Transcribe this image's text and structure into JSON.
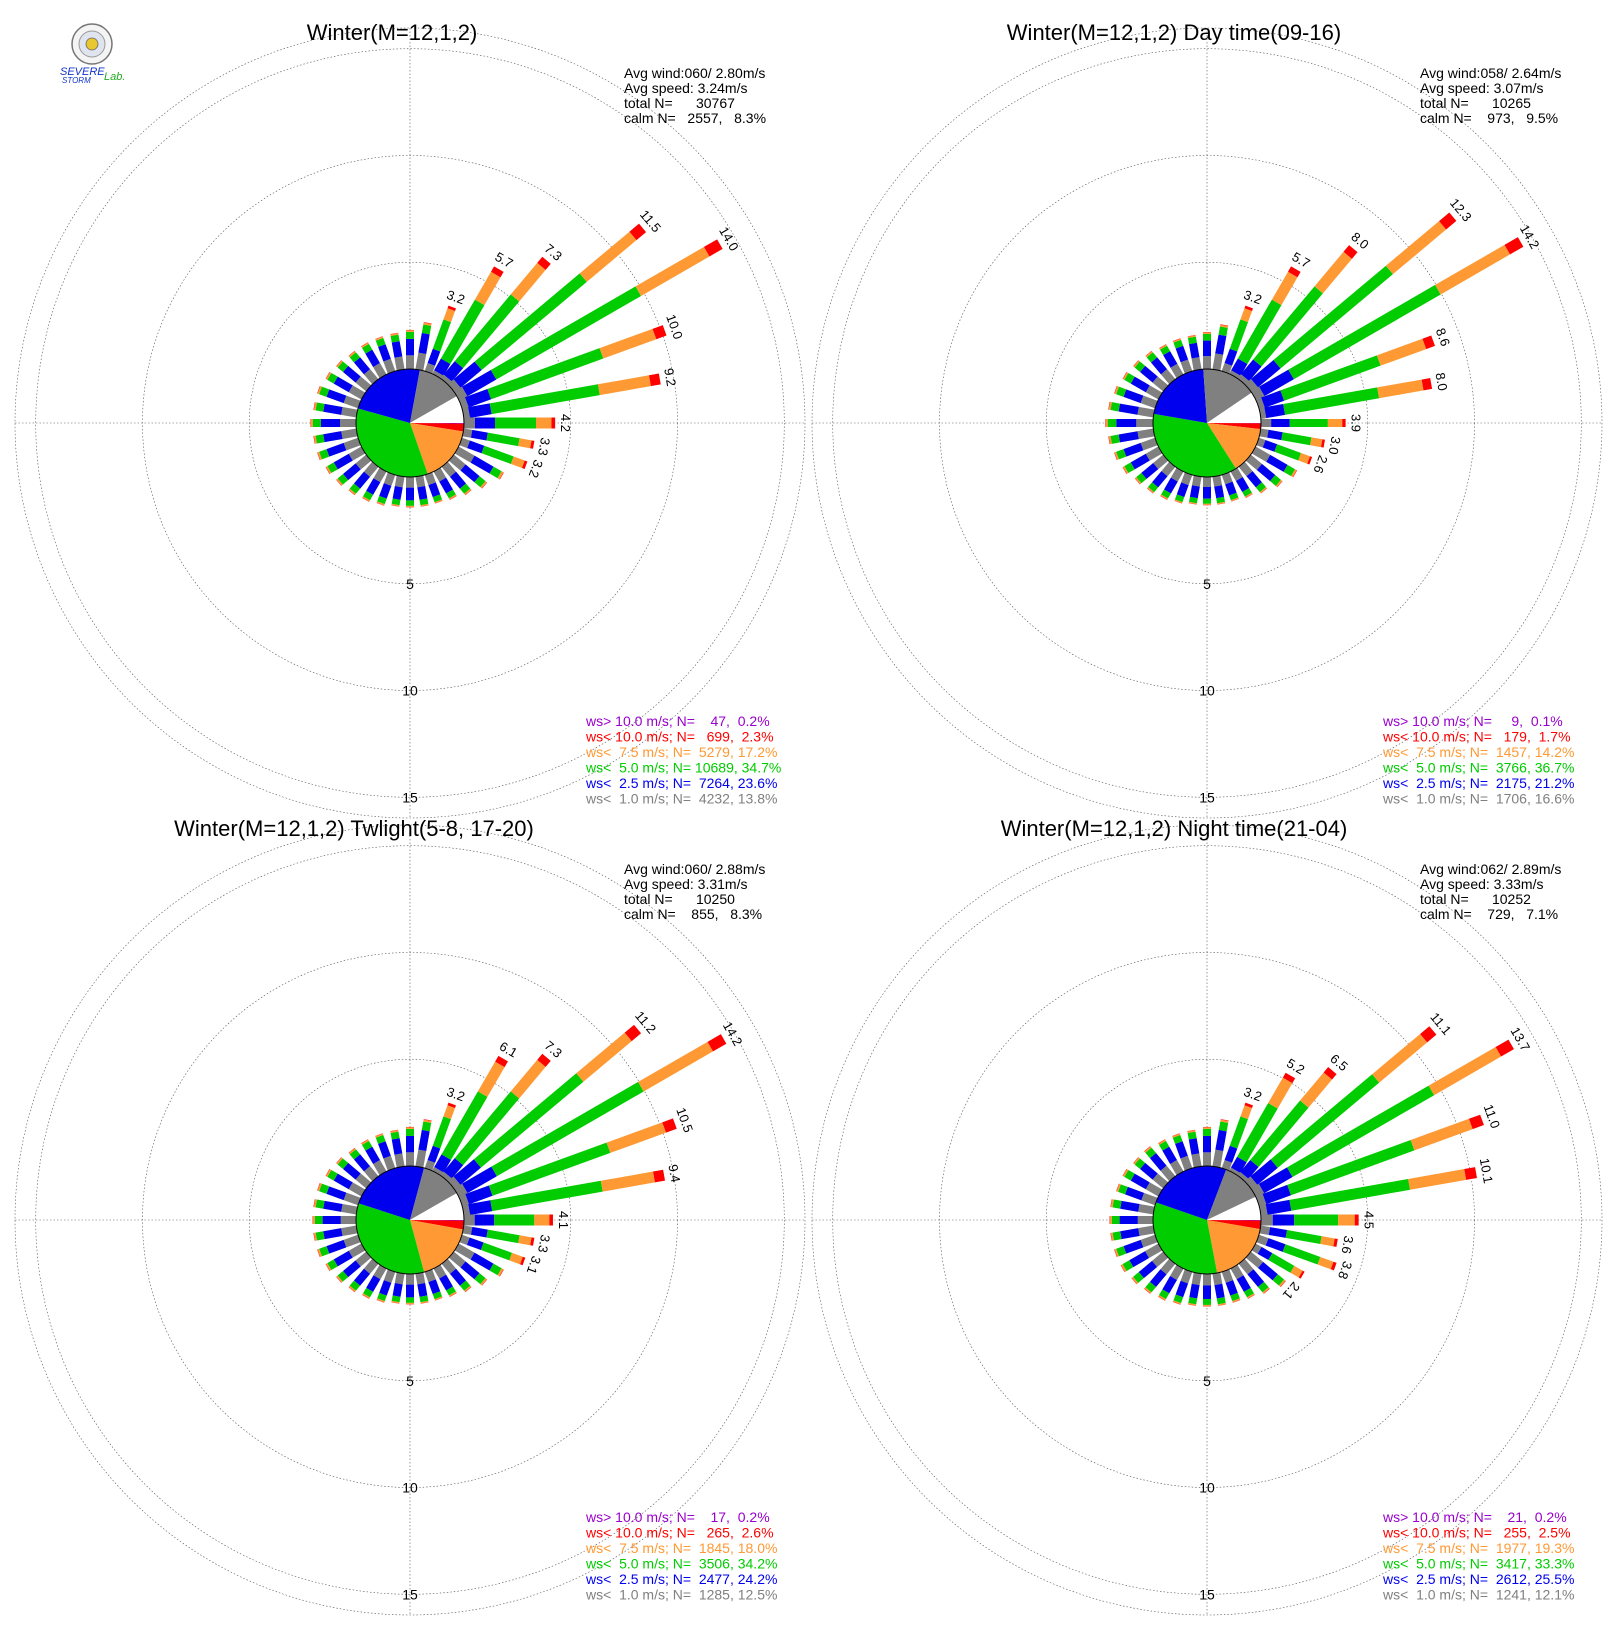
{
  "colors": {
    "gt10": "#9900cc",
    "lt10": "#ff0000",
    "lt75": "#ff9933",
    "lt50": "#00cc00",
    "lt25": "#0000ee",
    "lt10b": "#808080"
  },
  "logo": {
    "line1": "SEVERE",
    "line2": "STORM",
    "line3": "Lab."
  },
  "chart_data": [
    {
      "type": "windrose",
      "title": "Winter(M=12,1,2)",
      "stats": {
        "avg_wind": "Avg wind:060/ 2.80m/s",
        "avg_speed": "Avg speed: 3.24m/s",
        "total": "total N=      30767",
        "calm": "calm N=   2557,   8.3%"
      },
      "ring_labels": [
        "5",
        "10",
        "15"
      ],
      "rlim": [
        0,
        15
      ],
      "bar_labels": [
        {
          "dir": 30,
          "text": "5.7"
        },
        {
          "dir": 40,
          "text": "7.3"
        },
        {
          "dir": 50,
          "text": "11.5"
        },
        {
          "dir": 60,
          "text": "14.0"
        },
        {
          "dir": 70,
          "text": "10.0"
        },
        {
          "dir": 80,
          "text": "9.2"
        },
        {
          "dir": 20,
          "text": "3.2"
        },
        {
          "dir": 90,
          "text": "4.2"
        },
        {
          "dir": 100,
          "text": "3.3"
        },
        {
          "dir": 110,
          "text": "3.2"
        }
      ],
      "directions": [
        0,
        10,
        20,
        30,
        40,
        50,
        60,
        70,
        80,
        90,
        100,
        110,
        120,
        130,
        140,
        150,
        160,
        170,
        180,
        190,
        200,
        210,
        220,
        230,
        240,
        250,
        260,
        270,
        280,
        290,
        300,
        310,
        320,
        330,
        340,
        350
      ],
      "totals": [
        1.8,
        2.2,
        3.2,
        5.7,
        7.3,
        11.5,
        14.0,
        10.0,
        9.2,
        4.2,
        3.3,
        3.2,
        2.4,
        2.0,
        1.7,
        1.5,
        1.4,
        1.4,
        1.4,
        1.4,
        1.5,
        1.6,
        1.7,
        1.8,
        1.9,
        2.0,
        2.0,
        2.1,
        2.0,
        2.0,
        1.9,
        1.8,
        1.7,
        1.7,
        1.7,
        1.7
      ],
      "legend": [
        {
          "key": "gt10",
          "label": "ws> 10.0 m/s; N=    47,  0.2%"
        },
        {
          "key": "lt10",
          "label": "ws< 10.0 m/s; N=   699,  2.3%"
        },
        {
          "key": "lt75",
          "label": "ws<  7.5 m/s; N=  5279, 17.2%"
        },
        {
          "key": "lt50",
          "label": "ws<  5.0 m/s; N= 10689, 34.7%"
        },
        {
          "key": "lt25",
          "label": "ws<  2.5 m/s; N=  7264, 23.6%"
        },
        {
          "key": "lt10b",
          "label": "ws<  1.0 m/s; N=  4232, 13.8%"
        }
      ],
      "pie": [
        0.002,
        0.023,
        0.172,
        0.347,
        0.236,
        0.138,
        0.083
      ]
    },
    {
      "type": "windrose",
      "title": "Winter(M=12,1,2) Day time(09-16)",
      "stats": {
        "avg_wind": "Avg wind:058/ 2.64m/s",
        "avg_speed": "Avg speed: 3.07m/s",
        "total": "total N=      10265",
        "calm": "calm N=    973,   9.5%"
      },
      "ring_labels": [
        "5",
        "10",
        "15"
      ],
      "rlim": [
        0,
        15
      ],
      "bar_labels": [
        {
          "dir": 30,
          "text": "5.7"
        },
        {
          "dir": 40,
          "text": "8.0"
        },
        {
          "dir": 50,
          "text": "12.3"
        },
        {
          "dir": 60,
          "text": "14.2"
        },
        {
          "dir": 70,
          "text": "8.6"
        },
        {
          "dir": 80,
          "text": "8.0"
        },
        {
          "dir": 20,
          "text": "3.2"
        },
        {
          "dir": 90,
          "text": "3.9"
        },
        {
          "dir": 100,
          "text": "3.0"
        },
        {
          "dir": 110,
          "text": "2.6"
        }
      ],
      "directions": [
        0,
        10,
        20,
        30,
        40,
        50,
        60,
        70,
        80,
        90,
        100,
        110,
        120,
        130,
        140,
        150,
        160,
        170,
        180,
        190,
        200,
        210,
        220,
        230,
        240,
        250,
        260,
        270,
        280,
        290,
        300,
        310,
        320,
        330,
        340,
        350
      ],
      "totals": [
        1.7,
        2.1,
        3.2,
        5.7,
        8.0,
        12.3,
        14.2,
        8.6,
        8.0,
        3.9,
        3.0,
        2.6,
        2.2,
        1.9,
        1.6,
        1.4,
        1.3,
        1.3,
        1.3,
        1.3,
        1.4,
        1.5,
        1.6,
        1.7,
        1.9,
        2.0,
        2.1,
        2.2,
        2.1,
        2.0,
        1.9,
        1.8,
        1.7,
        1.6,
        1.6,
        1.6
      ],
      "legend": [
        {
          "key": "gt10",
          "label": "ws> 10.0 m/s; N=     9,  0.1%"
        },
        {
          "key": "lt10",
          "label": "ws< 10.0 m/s; N=   179,  1.7%"
        },
        {
          "key": "lt75",
          "label": "ws<  7.5 m/s; N=  1457, 14.2%"
        },
        {
          "key": "lt50",
          "label": "ws<  5.0 m/s; N=  3766, 36.7%"
        },
        {
          "key": "lt25",
          "label": "ws<  2.5 m/s; N=  2175, 21.2%"
        },
        {
          "key": "lt10b",
          "label": "ws<  1.0 m/s; N=  1706, 16.6%"
        }
      ],
      "pie": [
        0.001,
        0.017,
        0.142,
        0.367,
        0.212,
        0.166,
        0.095
      ]
    },
    {
      "type": "windrose",
      "title": "Winter(M=12,1,2) Twlight(5-8, 17-20)",
      "stats": {
        "avg_wind": "Avg wind:060/ 2.88m/s",
        "avg_speed": "Avg speed: 3.31m/s",
        "total": "total N=      10250",
        "calm": "calm N=    855,   8.3%"
      },
      "ring_labels": [
        "5",
        "10",
        "15"
      ],
      "rlim": [
        0,
        15
      ],
      "bar_labels": [
        {
          "dir": 30,
          "text": "6.1"
        },
        {
          "dir": 40,
          "text": "7.3"
        },
        {
          "dir": 50,
          "text": "11.2"
        },
        {
          "dir": 60,
          "text": "14.2"
        },
        {
          "dir": 70,
          "text": "10.5"
        },
        {
          "dir": 80,
          "text": "9.4"
        },
        {
          "dir": 20,
          "text": "3.2"
        },
        {
          "dir": 90,
          "text": "4.1"
        },
        {
          "dir": 100,
          "text": "3.3"
        },
        {
          "dir": 110,
          "text": "3.1"
        }
      ],
      "directions": [
        0,
        10,
        20,
        30,
        40,
        50,
        60,
        70,
        80,
        90,
        100,
        110,
        120,
        130,
        140,
        150,
        160,
        170,
        180,
        190,
        200,
        210,
        220,
        230,
        240,
        250,
        260,
        270,
        280,
        290,
        300,
        310,
        320,
        330,
        340,
        350
      ],
      "totals": [
        1.8,
        2.2,
        3.2,
        6.1,
        7.3,
        11.2,
        14.2,
        10.5,
        9.4,
        4.1,
        3.3,
        3.1,
        2.4,
        2.0,
        1.7,
        1.5,
        1.4,
        1.4,
        1.4,
        1.4,
        1.5,
        1.6,
        1.7,
        1.8,
        1.9,
        2.0,
        2.0,
        2.0,
        2.0,
        2.0,
        1.9,
        1.8,
        1.7,
        1.7,
        1.7,
        1.7
      ],
      "legend": [
        {
          "key": "gt10",
          "label": "ws> 10.0 m/s; N=    17,  0.2%"
        },
        {
          "key": "lt10",
          "label": "ws< 10.0 m/s; N=   265,  2.6%"
        },
        {
          "key": "lt75",
          "label": "ws<  7.5 m/s; N=  1845, 18.0%"
        },
        {
          "key": "lt50",
          "label": "ws<  5.0 m/s; N=  3506, 34.2%"
        },
        {
          "key": "lt25",
          "label": "ws<  2.5 m/s; N=  2477, 24.2%"
        },
        {
          "key": "lt10b",
          "label": "ws<  1.0 m/s; N=  1285, 12.5%"
        }
      ],
      "pie": [
        0.002,
        0.026,
        0.18,
        0.342,
        0.242,
        0.125,
        0.083
      ]
    },
    {
      "type": "windrose",
      "title": "Winter(M=12,1,2) Night time(21-04)",
      "stats": {
        "avg_wind": "Avg wind:062/ 2.89m/s",
        "avg_speed": "Avg speed: 3.33m/s",
        "total": "total N=      10252",
        "calm": "calm N=    729,   7.1%"
      },
      "ring_labels": [
        "5",
        "10",
        "15"
      ],
      "rlim": [
        0,
        15
      ],
      "bar_labels": [
        {
          "dir": 30,
          "text": "5.2"
        },
        {
          "dir": 40,
          "text": "6.5"
        },
        {
          "dir": 50,
          "text": "11.1"
        },
        {
          "dir": 60,
          "text": "13.7"
        },
        {
          "dir": 70,
          "text": "11.0"
        },
        {
          "dir": 80,
          "text": "10.1"
        },
        {
          "dir": 20,
          "text": "3.2"
        },
        {
          "dir": 90,
          "text": "4.5"
        },
        {
          "dir": 100,
          "text": "3.6"
        },
        {
          "dir": 110,
          "text": "3.8"
        },
        {
          "dir": 130,
          "text": "2.1"
        }
      ],
      "directions": [
        0,
        10,
        20,
        30,
        40,
        50,
        60,
        70,
        80,
        90,
        100,
        110,
        120,
        130,
        140,
        150,
        160,
        170,
        180,
        190,
        200,
        210,
        220,
        230,
        240,
        250,
        260,
        270,
        280,
        290,
        300,
        310,
        320,
        330,
        340,
        350
      ],
      "totals": [
        1.8,
        2.2,
        3.2,
        5.2,
        6.5,
        11.1,
        13.7,
        11.0,
        10.1,
        4.5,
        3.6,
        3.8,
        2.6,
        2.1,
        1.8,
        1.6,
        1.5,
        1.5,
        1.5,
        1.5,
        1.6,
        1.7,
        1.8,
        1.9,
        2.0,
        2.0,
        2.0,
        2.0,
        2.0,
        1.9,
        1.9,
        1.8,
        1.8,
        1.7,
        1.7,
        1.7
      ],
      "legend": [
        {
          "key": "gt10",
          "label": "ws> 10.0 m/s; N=    21,  0.2%"
        },
        {
          "key": "lt10",
          "label": "ws< 10.0 m/s; N=   255,  2.5%"
        },
        {
          "key": "lt75",
          "label": "ws<  7.5 m/s; N=  1977, 19.3%"
        },
        {
          "key": "lt50",
          "label": "ws<  5.0 m/s; N=  3417, 33.3%"
        },
        {
          "key": "lt25",
          "label": "ws<  2.5 m/s; N=  2612, 25.5%"
        },
        {
          "key": "lt10b",
          "label": "ws<  1.0 m/s; N=  1241, 12.1%"
        }
      ],
      "pie": [
        0.002,
        0.025,
        0.193,
        0.333,
        0.255,
        0.121,
        0.071
      ]
    }
  ]
}
